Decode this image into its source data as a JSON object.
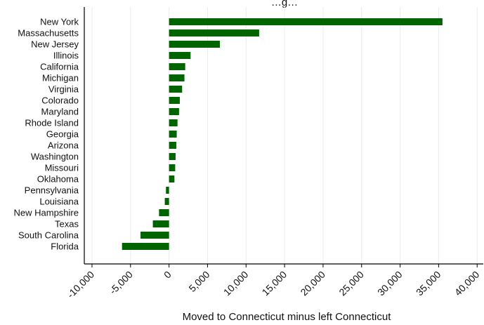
{
  "chart_data": {
    "type": "bar",
    "orientation": "horizontal",
    "title": "…g…",
    "xlabel": "Moved to Connecticut minus left Connecticut",
    "ylabel": "",
    "categories": [
      "New York",
      "Massachusetts",
      "New Jersey",
      "Illinois",
      "California",
      "Michigan",
      "Virginia",
      "Colorado",
      "Maryland",
      "Rhode Island",
      "Georgia",
      "Arizona",
      "Washington",
      "Missouri",
      "Oklahoma",
      "Pennsylvania",
      "Louisiana",
      "New Hampshire",
      "Texas",
      "South Carolina",
      "Florida"
    ],
    "values": [
      35500,
      11700,
      6600,
      2800,
      2100,
      2000,
      1700,
      1400,
      1300,
      1100,
      1000,
      950,
      850,
      800,
      700,
      -400,
      -550,
      -1300,
      -2100,
      -3700,
      -6100
    ],
    "xlim": [
      -11000,
      40800
    ],
    "x_ticks": [
      -10000,
      -5000,
      0,
      5000,
      10000,
      15000,
      20000,
      25000,
      30000,
      35000,
      40000
    ],
    "x_tick_labels": [
      "-10,000",
      "-5,000",
      "0",
      "5,000",
      "10,000",
      "15,000",
      "20,000",
      "25,000",
      "30,000",
      "35,000",
      "40,000"
    ],
    "grid": true,
    "colors": {
      "bar": "#006400",
      "grid": "#ececec",
      "axis": "#000000"
    }
  }
}
